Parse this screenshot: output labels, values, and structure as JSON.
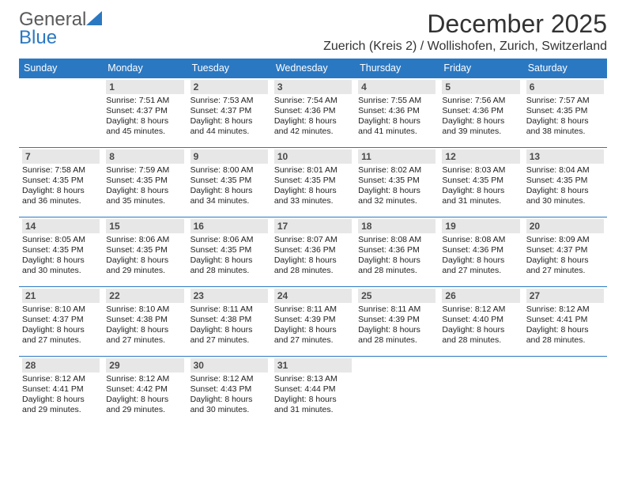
{
  "brand": {
    "word1": "General",
    "word2": "Blue"
  },
  "title": "December 2025",
  "subtitle": "Zuerich (Kreis 2) / Wollishofen, Zurich, Switzerland",
  "colors": {
    "accent": "#2b78c2",
    "header_text": "#ffffff",
    "daynum_bg": "#e7e7e7",
    "text": "#222222",
    "logo_gray": "#5a5a5a"
  },
  "weekdays": [
    "Sunday",
    "Monday",
    "Tuesday",
    "Wednesday",
    "Thursday",
    "Friday",
    "Saturday"
  ],
  "first_weekday_index": 1,
  "days": [
    {
      "n": 1,
      "sunrise": "7:51 AM",
      "sunset": "4:37 PM",
      "daylight": "8 hours and 45 minutes."
    },
    {
      "n": 2,
      "sunrise": "7:53 AM",
      "sunset": "4:37 PM",
      "daylight": "8 hours and 44 minutes."
    },
    {
      "n": 3,
      "sunrise": "7:54 AM",
      "sunset": "4:36 PM",
      "daylight": "8 hours and 42 minutes."
    },
    {
      "n": 4,
      "sunrise": "7:55 AM",
      "sunset": "4:36 PM",
      "daylight": "8 hours and 41 minutes."
    },
    {
      "n": 5,
      "sunrise": "7:56 AM",
      "sunset": "4:36 PM",
      "daylight": "8 hours and 39 minutes."
    },
    {
      "n": 6,
      "sunrise": "7:57 AM",
      "sunset": "4:35 PM",
      "daylight": "8 hours and 38 minutes."
    },
    {
      "n": 7,
      "sunrise": "7:58 AM",
      "sunset": "4:35 PM",
      "daylight": "8 hours and 36 minutes."
    },
    {
      "n": 8,
      "sunrise": "7:59 AM",
      "sunset": "4:35 PM",
      "daylight": "8 hours and 35 minutes."
    },
    {
      "n": 9,
      "sunrise": "8:00 AM",
      "sunset": "4:35 PM",
      "daylight": "8 hours and 34 minutes."
    },
    {
      "n": 10,
      "sunrise": "8:01 AM",
      "sunset": "4:35 PM",
      "daylight": "8 hours and 33 minutes."
    },
    {
      "n": 11,
      "sunrise": "8:02 AM",
      "sunset": "4:35 PM",
      "daylight": "8 hours and 32 minutes."
    },
    {
      "n": 12,
      "sunrise": "8:03 AM",
      "sunset": "4:35 PM",
      "daylight": "8 hours and 31 minutes."
    },
    {
      "n": 13,
      "sunrise": "8:04 AM",
      "sunset": "4:35 PM",
      "daylight": "8 hours and 30 minutes."
    },
    {
      "n": 14,
      "sunrise": "8:05 AM",
      "sunset": "4:35 PM",
      "daylight": "8 hours and 30 minutes."
    },
    {
      "n": 15,
      "sunrise": "8:06 AM",
      "sunset": "4:35 PM",
      "daylight": "8 hours and 29 minutes."
    },
    {
      "n": 16,
      "sunrise": "8:06 AM",
      "sunset": "4:35 PM",
      "daylight": "8 hours and 28 minutes."
    },
    {
      "n": 17,
      "sunrise": "8:07 AM",
      "sunset": "4:36 PM",
      "daylight": "8 hours and 28 minutes."
    },
    {
      "n": 18,
      "sunrise": "8:08 AM",
      "sunset": "4:36 PM",
      "daylight": "8 hours and 28 minutes."
    },
    {
      "n": 19,
      "sunrise": "8:08 AM",
      "sunset": "4:36 PM",
      "daylight": "8 hours and 27 minutes."
    },
    {
      "n": 20,
      "sunrise": "8:09 AM",
      "sunset": "4:37 PM",
      "daylight": "8 hours and 27 minutes."
    },
    {
      "n": 21,
      "sunrise": "8:10 AM",
      "sunset": "4:37 PM",
      "daylight": "8 hours and 27 minutes."
    },
    {
      "n": 22,
      "sunrise": "8:10 AM",
      "sunset": "4:38 PM",
      "daylight": "8 hours and 27 minutes."
    },
    {
      "n": 23,
      "sunrise": "8:11 AM",
      "sunset": "4:38 PM",
      "daylight": "8 hours and 27 minutes."
    },
    {
      "n": 24,
      "sunrise": "8:11 AM",
      "sunset": "4:39 PM",
      "daylight": "8 hours and 27 minutes."
    },
    {
      "n": 25,
      "sunrise": "8:11 AM",
      "sunset": "4:39 PM",
      "daylight": "8 hours and 28 minutes."
    },
    {
      "n": 26,
      "sunrise": "8:12 AM",
      "sunset": "4:40 PM",
      "daylight": "8 hours and 28 minutes."
    },
    {
      "n": 27,
      "sunrise": "8:12 AM",
      "sunset": "4:41 PM",
      "daylight": "8 hours and 28 minutes."
    },
    {
      "n": 28,
      "sunrise": "8:12 AM",
      "sunset": "4:41 PM",
      "daylight": "8 hours and 29 minutes."
    },
    {
      "n": 29,
      "sunrise": "8:12 AM",
      "sunset": "4:42 PM",
      "daylight": "8 hours and 29 minutes."
    },
    {
      "n": 30,
      "sunrise": "8:12 AM",
      "sunset": "4:43 PM",
      "daylight": "8 hours and 30 minutes."
    },
    {
      "n": 31,
      "sunrise": "8:13 AM",
      "sunset": "4:44 PM",
      "daylight": "8 hours and 31 minutes."
    }
  ],
  "labels": {
    "sunrise": "Sunrise:",
    "sunset": "Sunset:",
    "daylight": "Daylight:"
  }
}
